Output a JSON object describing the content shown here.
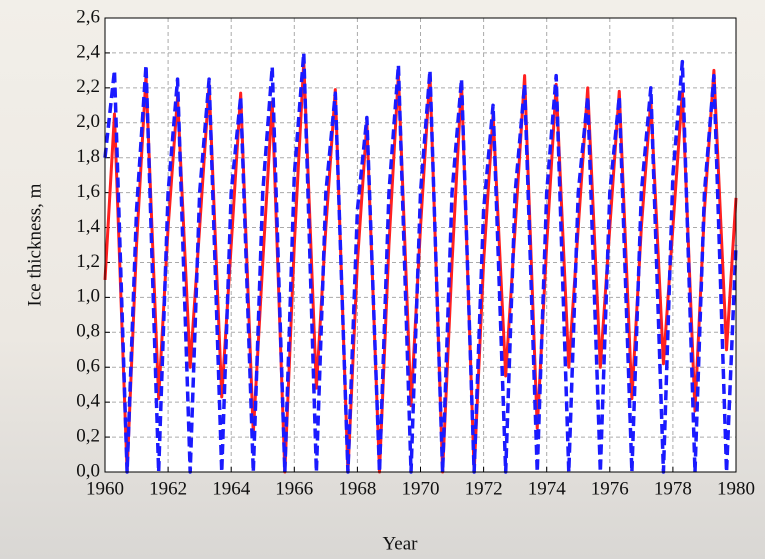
{
  "chart_data": {
    "type": "line",
    "xlabel": "Year",
    "ylabel": "Ice thickness, m",
    "x": [
      1960,
      1960.3,
      1960.7,
      1961,
      1961.3,
      1961.7,
      1962,
      1962.3,
      1962.7,
      1963,
      1963.3,
      1963.7,
      1964,
      1964.3,
      1964.7,
      1965,
      1965.3,
      1965.7,
      1966,
      1966.3,
      1966.7,
      1967,
      1967.3,
      1967.7,
      1968,
      1968.3,
      1968.7,
      1969,
      1969.3,
      1969.7,
      1970,
      1970.3,
      1970.7,
      1971,
      1971.3,
      1971.7,
      1972,
      1972.3,
      1972.7,
      1973,
      1973.3,
      1973.7,
      1974,
      1974.3,
      1974.7,
      1975,
      1975.3,
      1975.7,
      1976,
      1976.3,
      1976.7,
      1977,
      1977.3,
      1977.7,
      1978,
      1978.3,
      1978.7,
      1979,
      1979.3,
      1979.7,
      1980
    ],
    "series": [
      {
        "color": "#ff2020",
        "dashed": false,
        "values": [
          1.1,
          2.05,
          0,
          1.3,
          2.27,
          0.42,
          1.4,
          2.15,
          0.6,
          1.4,
          2.22,
          0.43,
          1.3,
          2.17,
          0.22,
          1.2,
          2.12,
          0,
          1.3,
          2.35,
          0.48,
          1.4,
          2.19,
          0,
          1.2,
          2.0,
          0,
          1.3,
          2.28,
          0.38,
          1.4,
          2.28,
          0,
          1.2,
          2.23,
          0,
          1.2,
          2.05,
          0.55,
          1.4,
          2.27,
          0.25,
          1.3,
          2.22,
          0.6,
          1.4,
          2.2,
          0.6,
          1.4,
          2.18,
          0.42,
          1.4,
          2.13,
          0.62,
          1.4,
          2.18,
          0.35,
          1.5,
          2.3,
          0.7,
          1.57
        ]
      },
      {
        "color": "#1a1aff",
        "dashed": true,
        "values": [
          1.8,
          2.3,
          0,
          1.5,
          2.33,
          0,
          1.6,
          2.25,
          0,
          1.6,
          2.25,
          0,
          1.6,
          2.15,
          0,
          1.6,
          2.32,
          0,
          1.7,
          2.4,
          0,
          1.6,
          2.17,
          0,
          1.5,
          2.03,
          0,
          1.6,
          2.33,
          0,
          1.6,
          2.3,
          0,
          1.6,
          2.25,
          0,
          1.5,
          2.1,
          0,
          1.6,
          2.22,
          0,
          1.6,
          2.27,
          0,
          1.6,
          2.15,
          0,
          1.6,
          2.15,
          0,
          1.6,
          2.2,
          0,
          1.7,
          2.35,
          0,
          1.6,
          2.27,
          0,
          1.3
        ]
      }
    ],
    "xlim": [
      1960,
      1980
    ],
    "xticks": [
      1960,
      1962,
      1964,
      1966,
      1968,
      1970,
      1972,
      1974,
      1976,
      1978,
      1980
    ],
    "ylim": [
      0,
      2.6
    ],
    "yticks": [
      {
        "value": 0,
        "label": "0,0"
      },
      {
        "value": 0.2,
        "label": "0,2"
      },
      {
        "value": 0.4,
        "label": "0,4"
      },
      {
        "value": 0.6,
        "label": "0,6"
      },
      {
        "value": 0.8,
        "label": "0,8"
      },
      {
        "value": 1.0,
        "label": "1,0"
      },
      {
        "value": 1.2,
        "label": "1,2"
      },
      {
        "value": 1.4,
        "label": "1,4"
      },
      {
        "value": 1.6,
        "label": "1,6"
      },
      {
        "value": 1.8,
        "label": "1,8"
      },
      {
        "value": 2.0,
        "label": "2,0"
      },
      {
        "value": 2.2,
        "label": "2,2"
      },
      {
        "value": 2.4,
        "label": "2,4"
      },
      {
        "value": 2.6,
        "label": "2,6"
      }
    ],
    "grid": true
  }
}
